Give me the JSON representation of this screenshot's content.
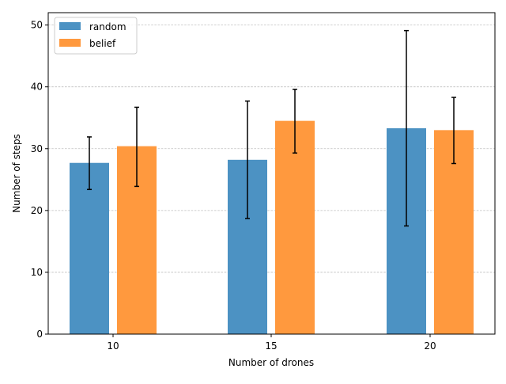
{
  "chart_data": {
    "type": "bar",
    "xlabel": "Number of drones",
    "ylabel": "Number of steps",
    "categories": [
      "10",
      "15",
      "20"
    ],
    "ylim": [
      0,
      52
    ],
    "yticks": [
      0,
      10,
      20,
      30,
      40,
      50
    ],
    "grid": "y-axis dashed",
    "legend_position": "top-left",
    "series": [
      {
        "name": "random",
        "color": "#4c92c3",
        "values": [
          27.7,
          28.2,
          33.3
        ],
        "error_low": [
          23.4,
          18.7,
          17.5
        ],
        "error_high": [
          31.9,
          37.7,
          49.1
        ]
      },
      {
        "name": "belief",
        "color": "#ff993e",
        "values": [
          30.4,
          34.5,
          33.0
        ],
        "error_low": [
          23.9,
          29.3,
          27.6
        ],
        "error_high": [
          36.7,
          39.6,
          38.3
        ]
      }
    ]
  }
}
